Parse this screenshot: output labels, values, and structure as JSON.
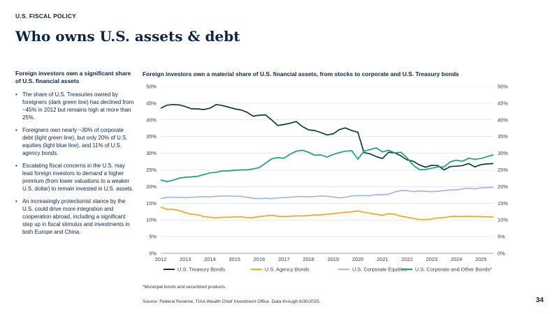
{
  "header": {
    "eyebrow": "U.S. FISCAL POLICY",
    "title": "Who owns U.S. assets & debt"
  },
  "left_panel": {
    "heading": "Foreign investors own a significant share of U.S. financial assets",
    "bullets": [
      "The share of U.S. Treasuries owned by foreigners (dark green line) has declined from ~45% in 2012 but remains high at more than 25%.",
      "Foreigners own nearly ~30% of corporate debt (light green line), but only 20% of U.S. equities (light blue line), and 11% of U.S. agency bonds.",
      "Escalating fiscal concerns in the U.S. may lead foreign investors to demand a higher premium (from lower valuations to a weaker U.S. dollar) to remain invested in U.S. assets.",
      "An increasingly protectionist stance by the U.S. could drive more integration and cooperation abroad, including a significant step up in fiscal stimulus and investments in both Europe and China."
    ]
  },
  "chart_title": "Foreign investors own a material share of U.S. financial assets, from stocks to corporate and U.S. Treasury bonds",
  "footnote": "*Municipal bonds and securitized products.",
  "source": "Source: Federal Reserve, TIAA Wealth Chief Investment Office. Data through 6/30/2025.",
  "page_number": "34",
  "chart_data": {
    "type": "line",
    "x_tick_labels": [
      "2012",
      "2013",
      "2014",
      "2015",
      "2016",
      "2017",
      "2018",
      "2019",
      "2020",
      "2021",
      "2022",
      "2023",
      "2024",
      "2025"
    ],
    "xlim": [
      2012.0,
      2025.5
    ],
    "ylim": [
      0,
      50
    ],
    "y_tick_labels": [
      "0%",
      "5%",
      "10%",
      "15%",
      "20%",
      "25%",
      "30%",
      "35%",
      "40%",
      "45%",
      "50%"
    ],
    "grid": "horizontal",
    "legend_position": "bottom",
    "x": [
      2012.0,
      2012.25,
      2012.5,
      2012.75,
      2013.0,
      2013.25,
      2013.5,
      2013.75,
      2014.0,
      2014.25,
      2014.5,
      2014.75,
      2015.0,
      2015.25,
      2015.5,
      2015.75,
      2016.0,
      2016.25,
      2016.5,
      2016.75,
      2017.0,
      2017.25,
      2017.5,
      2017.75,
      2018.0,
      2018.25,
      2018.5,
      2018.75,
      2019.0,
      2019.25,
      2019.5,
      2019.75,
      2020.0,
      2020.25,
      2020.5,
      2020.75,
      2021.0,
      2021.25,
      2021.5,
      2021.75,
      2022.0,
      2022.25,
      2022.5,
      2022.75,
      2023.0,
      2023.25,
      2023.5,
      2023.75,
      2024.0,
      2024.25,
      2024.5,
      2024.75,
      2025.0,
      2025.25,
      2025.5
    ],
    "series": [
      {
        "name": "U.S. Treasury Bonds",
        "color": "#0d3b3a",
        "values": [
          43.5,
          44.4,
          44.6,
          44.5,
          44.0,
          43.3,
          43.3,
          43.1,
          43.5,
          44.6,
          44.3,
          43.8,
          43.3,
          43.0,
          42.3,
          41.1,
          41.4,
          41.5,
          40.0,
          38.3,
          38.6,
          39.0,
          39.5,
          38.0,
          37.0,
          36.8,
          36.2,
          35.5,
          35.8,
          37.1,
          37.6,
          36.8,
          36.3,
          30.2,
          29.8,
          29.0,
          28.4,
          30.3,
          30.1,
          29.2,
          28.0,
          27.6,
          26.5,
          25.8,
          26.4,
          26.3,
          25.0,
          26.0,
          26.1,
          26.3,
          26.9,
          25.9,
          26.6,
          26.8,
          26.9
        ]
      },
      {
        "name": "U.S. Agency Bonds",
        "color": "#f5a81c",
        "values": [
          13.9,
          13.2,
          13.2,
          12.8,
          12.2,
          11.7,
          11.6,
          11.0,
          10.8,
          10.6,
          10.8,
          10.8,
          10.9,
          10.9,
          10.7,
          10.7,
          11.0,
          11.2,
          11.4,
          11.1,
          11.0,
          11.1,
          11.2,
          11.2,
          11.3,
          11.5,
          11.5,
          11.7,
          11.9,
          12.1,
          12.3,
          12.4,
          12.7,
          12.3,
          12.0,
          11.7,
          11.4,
          11.9,
          11.7,
          11.1,
          10.8,
          10.5,
          10.1,
          10.1,
          10.3,
          10.6,
          10.7,
          11.0,
          11.1,
          11.0,
          11.1,
          11.0,
          11.0,
          10.9,
          10.9
        ]
      },
      {
        "name": "U.S. Corporate Equities",
        "color": "#9bb8e8",
        "values": [
          16.4,
          16.8,
          16.8,
          16.8,
          16.7,
          16.8,
          16.9,
          17.0,
          16.9,
          17.1,
          17.2,
          17.2,
          17.1,
          17.1,
          16.8,
          16.5,
          16.4,
          16.5,
          16.4,
          16.6,
          16.7,
          16.8,
          17.0,
          17.0,
          16.9,
          17.0,
          17.2,
          17.1,
          16.9,
          16.6,
          16.8,
          17.2,
          17.3,
          17.3,
          17.3,
          17.6,
          17.5,
          17.7,
          18.4,
          18.8,
          18.8,
          18.5,
          18.7,
          18.6,
          18.5,
          18.6,
          18.8,
          19.0,
          19.0,
          19.3,
          19.5,
          19.3,
          19.6,
          19.7,
          19.8
        ]
      },
      {
        "name": "U.S. Corporate and Other Bonds*",
        "color": "#1aa17b",
        "values": [
          22.0,
          21.5,
          21.9,
          22.5,
          22.8,
          22.9,
          23.1,
          23.6,
          24.1,
          24.3,
          24.7,
          24.7,
          24.9,
          25.0,
          25.0,
          25.3,
          25.7,
          27.0,
          28.3,
          28.7,
          28.5,
          29.7,
          30.6,
          30.9,
          30.3,
          29.4,
          29.5,
          28.9,
          29.6,
          30.2,
          30.6,
          30.8,
          28.2,
          30.6,
          31.1,
          31.6,
          30.4,
          30.9,
          30.1,
          30.3,
          28.6,
          26.4,
          25.1,
          25.1,
          25.5,
          25.9,
          25.9,
          27.4,
          27.9,
          27.6,
          28.5,
          28.2,
          28.4,
          29.0,
          29.5
        ]
      }
    ]
  }
}
